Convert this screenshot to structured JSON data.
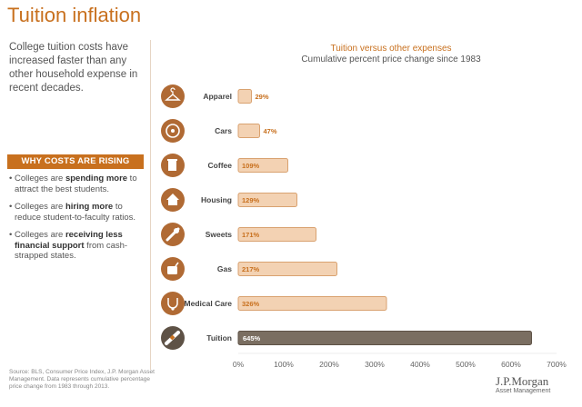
{
  "page": {
    "title": "Tuition inflation",
    "intro": "College tuition costs have increased faster than any other household expense in recent decades.",
    "why_heading": "WHY COSTS ARE RISING",
    "bullets": [
      {
        "pre": "• Colleges are ",
        "bold": "spending more",
        "post": " to attract the best students."
      },
      {
        "pre": "• Colleges are ",
        "bold": "hiring more",
        "post": " to reduce student-to-faculty ratios."
      },
      {
        "pre": "• Colleges are ",
        "bold": "receiving less financial support",
        "post": " from cash-strapped states."
      }
    ],
    "source": "Source: BLS, Consumer Price Index, J.P. Morgan Asset Management. Data represents cumulative percentage price change from 1983 through 2013.",
    "logo": {
      "brand": "J.P.Morgan",
      "sub": "Asset Management"
    }
  },
  "colors": {
    "accent": "#c8701e",
    "bar_fill": "#f3d2b3",
    "bar_stroke": "#d9a270",
    "tuition_fill": "#7a6e61",
    "icon_fill": "#b06a34",
    "tuition_icon_fill": "#5e5246"
  },
  "chart_data": {
    "type": "bar",
    "orientation": "horizontal",
    "title": "Tuition versus other expenses",
    "subtitle": "Cumulative percent price change since 1983",
    "categories": [
      "Apparel",
      "Cars",
      "Coffee",
      "Housing",
      "Sweets",
      "Gas",
      "Medical Care",
      "Tuition"
    ],
    "values": [
      29,
      47,
      109,
      129,
      171,
      217,
      326,
      645
    ],
    "labels": [
      "29%",
      "47%",
      "109%",
      "129%",
      "171%",
      "217%",
      "326%",
      "645%"
    ],
    "icons": [
      "hanger-icon",
      "steering-wheel-icon",
      "coffee-cup-icon",
      "house-icon",
      "candy-icon",
      "gas-can-icon",
      "stethoscope-icon",
      "diploma-icon"
    ],
    "xlim": [
      0,
      700
    ],
    "xticks": [
      0,
      100,
      200,
      300,
      400,
      500,
      600,
      700
    ],
    "xtick_labels": [
      "0%",
      "100%",
      "200%",
      "300%",
      "400%",
      "500%",
      "600%",
      "700%"
    ],
    "highlight": "Tuition"
  }
}
